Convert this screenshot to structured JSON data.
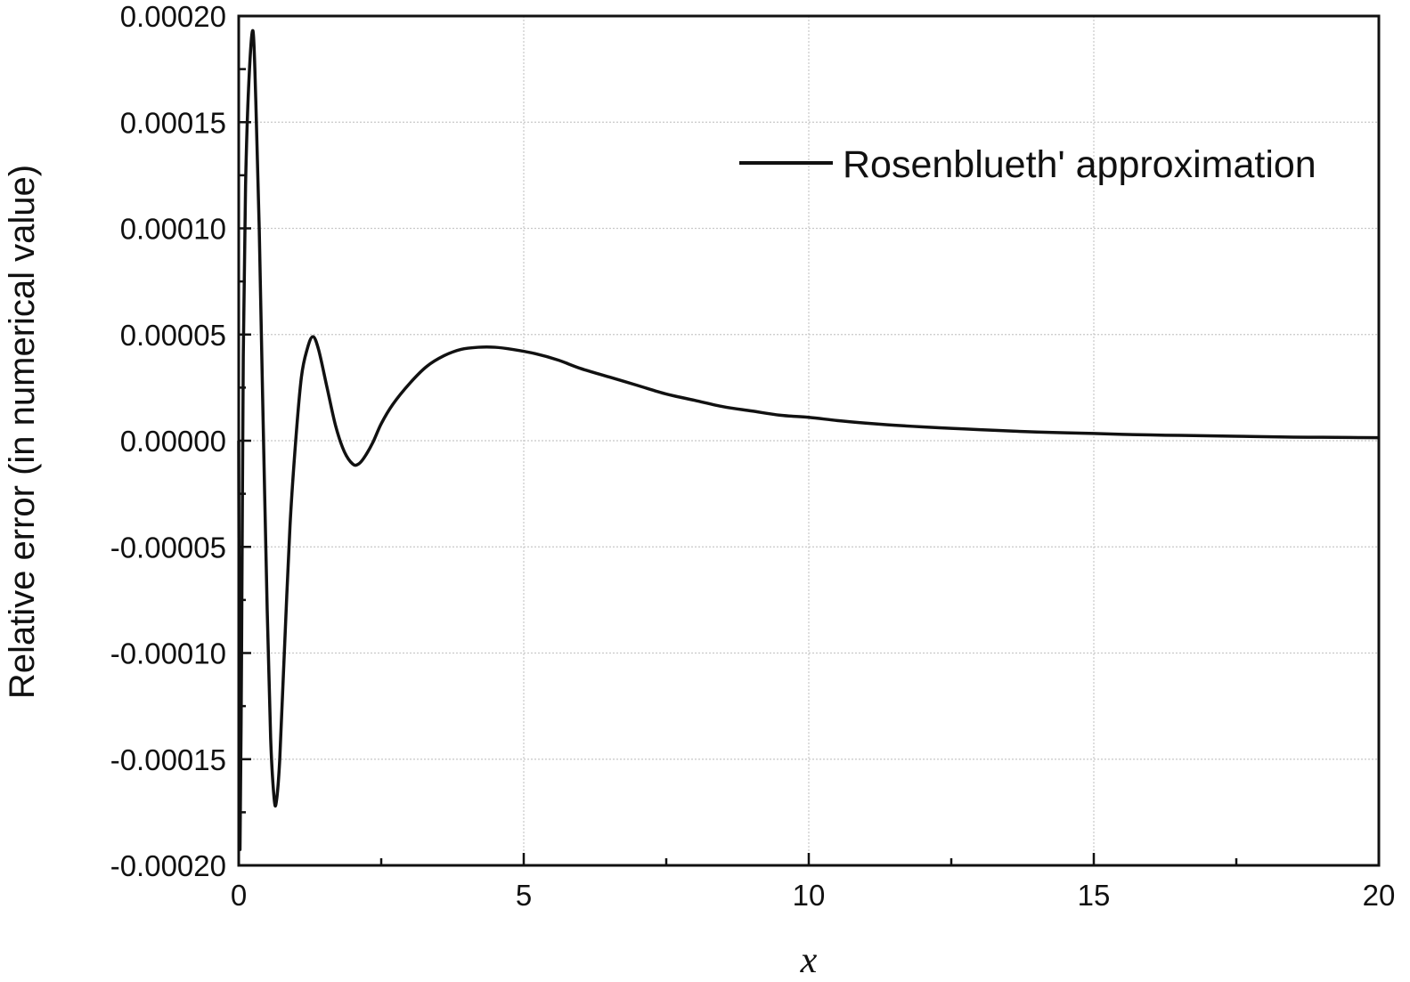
{
  "chart_data": {
    "type": "line",
    "title": "",
    "xlabel": "x",
    "ylabel": "Relative error (in numerical value)",
    "xlim": [
      0,
      20
    ],
    "ylim": [
      -0.0002,
      0.0002
    ],
    "x_ticks": [
      0,
      5,
      10,
      15,
      20
    ],
    "y_ticks": [
      -0.0002,
      -0.00015,
      -0.0001,
      -5e-05,
      0,
      5e-05,
      0.0001,
      0.00015,
      0.0002
    ],
    "x_tick_labels": [
      "0",
      "5",
      "10",
      "15",
      "20"
    ],
    "y_tick_labels": [
      "-0.00020",
      "-0.00015",
      "-0.00010",
      "-0.00005",
      "0.00000",
      "0.00005",
      "0.00010",
      "0.00015",
      "0.00020"
    ],
    "grid": true,
    "legend_position": "top-right",
    "line_color": "#111111",
    "series": [
      {
        "name": "Rosenblueth' approximation",
        "x": [
          0,
          0.02,
          0.05,
          0.08,
          0.12,
          0.18,
          0.25,
          0.3,
          0.36,
          0.42,
          0.5,
          0.56,
          0.62,
          0.66,
          0.72,
          0.8,
          0.9,
          1.0,
          1.1,
          1.2,
          1.3,
          1.4,
          1.55,
          1.7,
          1.85,
          2.0,
          2.1,
          2.2,
          2.35,
          2.5,
          2.7,
          3.0,
          3.3,
          3.6,
          3.9,
          4.2,
          4.5,
          4.8,
          5.2,
          5.6,
          6.0,
          6.5,
          7.0,
          7.5,
          8.0,
          8.5,
          9.0,
          9.5,
          10.0,
          10.5,
          11.0,
          11.5,
          12.0,
          12.5,
          13.0,
          13.5,
          14.0,
          14.5,
          15.0,
          15.5,
          16.0,
          16.5,
          17.0,
          17.5,
          18.0,
          18.5,
          19.0,
          19.5,
          20.0
        ],
        "y": [
          0.0,
          -0.00019,
          -0.0001,
          4e-05,
          0.00012,
          0.00017,
          0.000193,
          0.00016,
          0.0001,
          2e-05,
          -8e-05,
          -0.00014,
          -0.000168,
          -0.00017,
          -0.00015,
          -0.0001,
          -4e-05,
          0.0,
          3e-05,
          4.3e-05,
          4.9e-05,
          4.3e-05,
          2.5e-05,
          7e-06,
          -5e-06,
          -1.1e-05,
          -1.1e-05,
          -8e-06,
          -1e-06,
          8e-06,
          1.7e-05,
          2.7e-05,
          3.5e-05,
          4e-05,
          4.3e-05,
          4.4e-05,
          4.4e-05,
          4.3e-05,
          4.1e-05,
          3.8e-05,
          3.4e-05,
          3e-05,
          2.6e-05,
          2.2e-05,
          1.9e-05,
          1.6e-05,
          1.4e-05,
          1.2e-05,
          1.1e-05,
          9.5e-06,
          8.3e-06,
          7.3e-06,
          6.5e-06,
          5.8e-06,
          5.2e-06,
          4.6e-06,
          4.1e-06,
          3.7e-06,
          3.4e-06,
          3e-06,
          2.7e-06,
          2.5e-06,
          2.3e-06,
          2.1e-06,
          1.9e-06,
          1.7e-06,
          1.6e-06,
          1.5e-06,
          1.4e-06
        ]
      }
    ]
  }
}
